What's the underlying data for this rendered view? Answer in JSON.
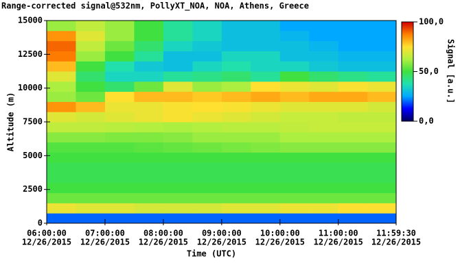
{
  "chart_data": {
    "type": "heatmap",
    "title": "Range-corrected signal@532nm, PollyXT_NOA, NOA, Athens, Greece",
    "x_label": "Time (UTC)",
    "y_label": "Altitude (m)",
    "colorbar_label": "Signal [a.u.]",
    "x": [
      "2015-12-26T06:15:00",
      "2015-12-26T06:45:00",
      "2015-12-26T07:15:00",
      "2015-12-26T07:45:00",
      "2015-12-26T08:15:00",
      "2015-12-26T08:45:00",
      "2015-12-26T09:15:00",
      "2015-12-26T09:45:00",
      "2015-12-26T10:15:00",
      "2015-12-26T10:45:00",
      "2015-12-26T11:15:00",
      "2015-12-26T11:45:00"
    ],
    "y": [
      375,
      1125,
      1875,
      2625,
      3375,
      4125,
      4875,
      5625,
      6375,
      7125,
      7875,
      8625,
      9375,
      10125,
      10875,
      11625,
      12375,
      13125,
      13875,
      14625
    ],
    "z": [
      [
        20,
        20,
        20,
        20,
        20,
        20,
        20,
        20,
        20,
        20,
        20,
        20
      ],
      [
        72,
        70,
        70,
        68,
        68,
        68,
        70,
        70,
        72,
        72,
        75,
        75
      ],
      [
        55,
        55,
        55,
        55,
        55,
        55,
        55,
        55,
        55,
        55,
        55,
        55
      ],
      [
        50,
        50,
        50,
        50,
        50,
        50,
        50,
        50,
        50,
        50,
        50,
        50
      ],
      [
        48,
        48,
        48,
        48,
        48,
        48,
        48,
        48,
        48,
        48,
        48,
        48
      ],
      [
        48,
        48,
        48,
        48,
        48,
        48,
        48,
        48,
        48,
        48,
        48,
        48
      ],
      [
        50,
        50,
        50,
        50,
        50,
        50,
        50,
        50,
        50,
        50,
        50,
        50
      ],
      [
        52,
        52,
        52,
        53,
        54,
        55,
        56,
        57,
        58,
        58,
        58,
        58
      ],
      [
        58,
        58,
        57,
        57,
        58,
        60,
        60,
        60,
        62,
        62,
        62,
        62
      ],
      [
        65,
        65,
        64,
        63,
        62,
        63,
        64,
        64,
        65,
        66,
        66,
        66
      ],
      [
        70,
        68,
        70,
        72,
        74,
        72,
        70,
        68,
        66,
        66,
        65,
        65
      ],
      [
        85,
        80,
        72,
        72,
        74,
        75,
        74,
        72,
        70,
        70,
        70,
        68
      ],
      [
        60,
        55,
        75,
        80,
        80,
        78,
        80,
        82,
        80,
        82,
        82,
        80
      ],
      [
        62,
        50,
        45,
        55,
        70,
        60,
        62,
        75,
        72,
        70,
        74,
        72
      ],
      [
        70,
        45,
        35,
        35,
        40,
        42,
        45,
        40,
        50,
        45,
        42,
        40
      ],
      [
        80,
        50,
        38,
        32,
        30,
        35,
        38,
        35,
        35,
        32,
        30,
        30
      ],
      [
        88,
        60,
        50,
        40,
        30,
        30,
        35,
        35,
        30,
        30,
        28,
        28
      ],
      [
        90,
        65,
        55,
        45,
        35,
        32,
        30,
        30,
        30,
        28,
        25,
        25
      ],
      [
        85,
        70,
        60,
        50,
        40,
        35,
        30,
        30,
        28,
        25,
        25,
        25
      ],
      [
        60,
        65,
        60,
        50,
        40,
        35,
        30,
        30,
        25,
        25,
        25,
        25
      ]
    ],
    "xlim": [
      "2015-12-26T06:00:00",
      "2015-12-26T11:59:30"
    ],
    "xticks": [
      {
        "value": "2015-12-26T06:00:00",
        "label": [
          "06:00:00",
          "12/26/2015"
        ]
      },
      {
        "value": "2015-12-26T07:00:00",
        "label": [
          "07:00:00",
          "12/26/2015"
        ]
      },
      {
        "value": "2015-12-26T08:00:00",
        "label": [
          "08:00:00",
          "12/26/2015"
        ]
      },
      {
        "value": "2015-12-26T09:00:00",
        "label": [
          "09:00:00",
          "12/26/2015"
        ]
      },
      {
        "value": "2015-12-26T10:00:00",
        "label": [
          "10:00:00",
          "12/26/2015"
        ]
      },
      {
        "value": "2015-12-26T11:00:00",
        "label": [
          "11:00:00",
          "12/26/2015"
        ]
      },
      {
        "value": "2015-12-26T11:59:30",
        "label": [
          "11:59:30",
          "12/26/2015"
        ]
      }
    ],
    "ylim": [
      0,
      15000
    ],
    "yticks": [
      0,
      2500,
      5000,
      7500,
      10000,
      12500,
      15000
    ],
    "clim": [
      0,
      100
    ],
    "cticks": [
      {
        "value": 0,
        "label": "0,0"
      },
      {
        "value": 50,
        "label": "50,0"
      },
      {
        "value": 100,
        "label": "100,0"
      }
    ],
    "colormap": [
      "#000060",
      "#0000ff",
      "#00a8ff",
      "#20e0b0",
      "#40e040",
      "#b0f040",
      "#ffe030",
      "#ff8000",
      "#d00000"
    ]
  }
}
